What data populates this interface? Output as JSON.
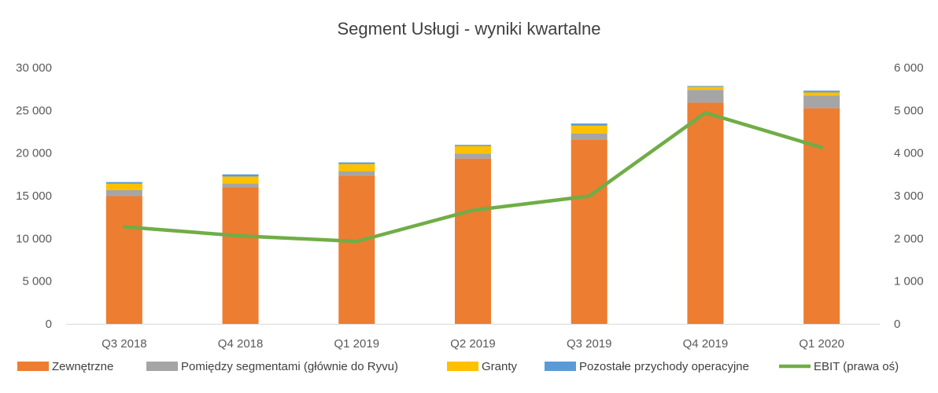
{
  "chart_data": {
    "type": "bar",
    "stacked": true,
    "title": "Segment Usługi - wyniki kwartalne",
    "categories": [
      "Q3 2018",
      "Q4 2018",
      "Q1 2019",
      "Q2 2019",
      "Q3 2019",
      "Q4 2019",
      "Q1 2020"
    ],
    "y_left": {
      "min": 0,
      "max": 30000,
      "step": 5000,
      "tick_labels": [
        "0",
        "5 000",
        "10 000",
        "15 000",
        "20 000",
        "25 000",
        "30 000"
      ]
    },
    "y_right": {
      "min": 0,
      "max": 6000,
      "step": 1000,
      "tick_labels": [
        "0",
        "1 000",
        "2 000",
        "3 000",
        "4 000",
        "5 000",
        "6 000"
      ]
    },
    "series": [
      {
        "name": "Zewnętrzne",
        "kind": "bar",
        "axis": "left",
        "color": "#ED7D31",
        "values": [
          14950,
          16000,
          17300,
          19350,
          21600,
          25900,
          25250
        ]
      },
      {
        "name": "Pomiędzy segmentami (głównie do Ryvu)",
        "kind": "bar",
        "axis": "left",
        "color": "#A5A5A5",
        "values": [
          700,
          450,
          550,
          600,
          700,
          1500,
          1500
        ]
      },
      {
        "name": "Granty",
        "kind": "bar",
        "axis": "left",
        "color": "#FFC000",
        "values": [
          750,
          800,
          850,
          850,
          900,
          350,
          350
        ]
      },
      {
        "name": "Pozostałe przychody operacyjne",
        "kind": "bar",
        "axis": "left",
        "color": "#5B9BD5",
        "values": [
          200,
          250,
          200,
          150,
          250,
          100,
          200
        ]
      },
      {
        "name": "EBIT (prawa oś)",
        "kind": "line",
        "axis": "right",
        "color": "#70AD47",
        "values": [
          2270,
          2060,
          1930,
          2660,
          2990,
          4940,
          4130
        ]
      }
    ],
    "legend_position": "bottom",
    "grid": false
  }
}
